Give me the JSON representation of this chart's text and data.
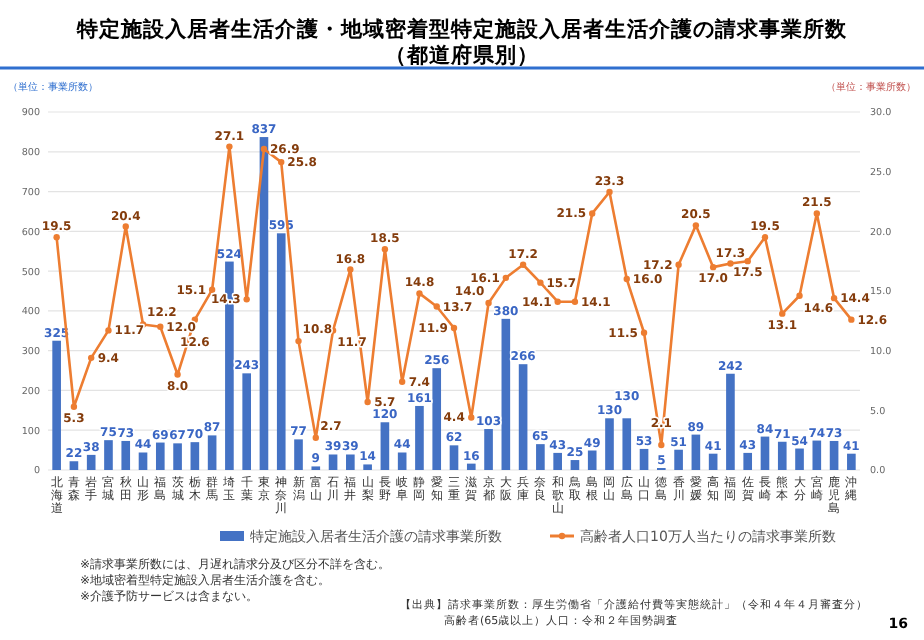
{
  "chart_data": {
    "type": "bar",
    "title": "特定施設入居者生活介護・地域密着型特定施設入居者生活介護の請求事業所数",
    "subtitle": "（都道府県別）",
    "ylabel": "（単位：事業所数）",
    "y2label": "（単位：事業所数）",
    "categories": [
      "北海道",
      "青森",
      "岩手",
      "宮城",
      "秋田",
      "山形",
      "福島",
      "茨城",
      "栃木",
      "群馬",
      "埼玉",
      "千葉",
      "東京",
      "神奈川",
      "新潟",
      "富山",
      "石川",
      "福井",
      "山梨",
      "長野",
      "岐阜",
      "静岡",
      "愛知",
      "三重",
      "滋賀",
      "京都",
      "大阪",
      "兵庫",
      "奈良",
      "和歌山",
      "鳥取",
      "島根",
      "岡山",
      "広島",
      "山口",
      "徳島",
      "香川",
      "愛媛",
      "高知",
      "福岡",
      "佐賀",
      "長崎",
      "熊本",
      "大分",
      "宮崎",
      "鹿児島",
      "沖縄"
    ],
    "series": [
      {
        "name": "特定施設入居者生活介護の請求事業所数",
        "color": "#4472c4",
        "values": [
          325,
          22,
          38,
          75,
          73,
          44,
          69,
          67,
          70,
          87,
          524,
          243,
          837,
          595,
          77,
          9,
          39,
          39,
          14,
          120,
          44,
          161,
          256,
          62,
          16,
          103,
          380,
          266,
          65,
          43,
          25,
          49,
          130,
          130,
          53,
          5,
          51,
          89,
          41,
          242,
          43,
          84,
          71,
          54,
          74,
          73,
          41
        ]
      },
      {
        "name": "高齢者人口10万人当たりの請求事業所数",
        "type": "line",
        "axis": "y2",
        "color": "#ed7d31",
        "values": [
          19.5,
          5.3,
          9.4,
          11.7,
          20.4,
          12.2,
          12.0,
          8.0,
          12.6,
          15.1,
          27.1,
          14.3,
          26.9,
          25.8,
          10.8,
          2.7,
          11.7,
          16.8,
          5.7,
          18.5,
          7.4,
          14.8,
          13.7,
          11.9,
          4.4,
          14.0,
          16.1,
          17.2,
          15.7,
          14.1,
          14.1,
          21.5,
          23.3,
          16.0,
          11.5,
          2.1,
          17.2,
          20.5,
          17.0,
          17.3,
          17.5,
          19.5,
          13.1,
          14.6,
          21.5,
          14.4,
          12.6
        ],
        "value_labels": [
          "19.5",
          "5.3",
          "9.4",
          "11.7",
          "20.4",
          "12.2",
          "12.0",
          "8.0",
          "12.6",
          "15.1",
          "27.1",
          "14.3",
          "26.9",
          "25.8",
          "10.8",
          "2.7",
          "11.7",
          "16.8",
          "5.7",
          "18.5",
          "7.4",
          "14.8",
          "13.7",
          "11.9",
          "4.4",
          "14.0",
          "16.1",
          "17.2",
          "15.7",
          "14.1",
          "14.1",
          "21.5",
          "23.3",
          "16.0",
          "11.5",
          "2.1",
          "17.2",
          "20.5",
          "17.0",
          "17.3",
          "17.5",
          "19.5",
          "13.1",
          "14.6",
          "21.5",
          "14.4",
          "12.6"
        ]
      }
    ],
    "ylim": [
      0,
      900
    ],
    "yticks": [
      0,
      100,
      200,
      300,
      400,
      500,
      600,
      700,
      800,
      900
    ],
    "y2lim": [
      0,
      30
    ],
    "y2ticks": [
      {
        "value": 0,
        "label": "0.0"
      },
      {
        "value": 5,
        "label": "5.0"
      },
      {
        "value": 10,
        "label": "10.0"
      },
      {
        "value": 15,
        "label": "15.0"
      },
      {
        "value": 20,
        "label": "20.0"
      },
      {
        "value": 25,
        "label": "25.0"
      },
      {
        "value": 30,
        "label": "30.0"
      }
    ],
    "grid": "y",
    "legend": "bottom",
    "marker": "circle",
    "data_labels": true,
    "annotations": [
      "※請求事業所数には、月遅れ請求分及び区分不詳を含む。",
      "※地域密着型特定施設入居者生活介護を含む。",
      "※介護予防サービスは含まない。",
      "【出典】請求事業所数：厚生労働省「介護給付費等実態統計」（令和４年４月審査分）",
      "高齢者(65歳以上）人口：令和２年国勢調査",
      "16"
    ]
  }
}
